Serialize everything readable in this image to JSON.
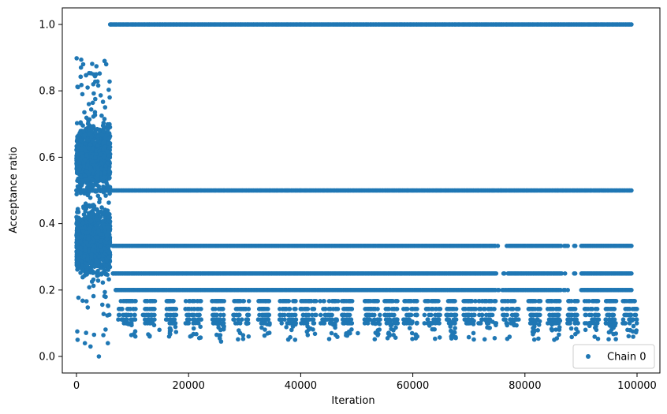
{
  "chart_data": {
    "type": "scatter",
    "title": "",
    "xlabel": "Iteration",
    "ylabel": "Acceptance ratio",
    "xlim": [
      -5000,
      104000
    ],
    "ylim": [
      -0.05,
      1.05
    ],
    "xticks": [
      0,
      20000,
      40000,
      60000,
      80000,
      100000
    ],
    "xtick_labels": [
      "0",
      "20000",
      "40000",
      "60000",
      "80000",
      "100000"
    ],
    "yticks": [
      0.0,
      0.2,
      0.4,
      0.6,
      0.8,
      1.0
    ],
    "ytick_labels": [
      "0.0",
      "0.2",
      "0.4",
      "0.6",
      "0.8",
      "1.0"
    ],
    "grid": false,
    "legend_position": "bottom-right",
    "color": "#1f77b4",
    "series": [
      {
        "name": "Chain 0",
        "description_of_pattern": {
          "burn_in_end": 6000,
          "burn_in_range": [
            0.0,
            0.9
          ],
          "levels_after_burn_in": [
            1.0,
            0.5,
            0.333,
            0.25,
            0.2,
            0.1667,
            0.1429,
            0.125,
            0.1111,
            0.1
          ]
        },
        "points": [
          [
            6000,
            1.0
          ],
          [
            99000,
            1.0
          ],
          [
            0,
            0.5
          ],
          [
            99000,
            0.5
          ],
          [
            6500,
            0.333
          ],
          [
            99000,
            0.333
          ],
          [
            6500,
            0.25
          ],
          [
            99000,
            0.25
          ],
          [
            7000,
            0.2
          ],
          [
            99000,
            0.2
          ],
          [
            200,
            0.05
          ],
          [
            800,
            0.87
          ],
          [
            1200,
            0.88
          ],
          [
            1500,
            0.04
          ],
          [
            2500,
            0.03
          ],
          [
            3000,
            0.82
          ],
          [
            3500,
            0.85
          ],
          [
            4000,
            0.0
          ],
          [
            5000,
            0.89
          ],
          [
            5300,
            0.88
          ],
          [
            5600,
            0.04
          ],
          [
            10500,
            0.06
          ],
          [
            14800,
            0.08
          ],
          [
            20300,
            0.06
          ],
          [
            25800,
            0.045
          ],
          [
            30700,
            0.06
          ],
          [
            39000,
            0.05
          ],
          [
            45500,
            0.07
          ],
          [
            50200,
            0.07
          ],
          [
            55500,
            0.055
          ],
          [
            60800,
            0.06
          ],
          [
            66700,
            0.09
          ],
          [
            74600,
            0.055
          ],
          [
            84900,
            0.08
          ],
          [
            90800,
            0.08
          ],
          [
            98300,
            0.08
          ]
        ]
      }
    ]
  }
}
